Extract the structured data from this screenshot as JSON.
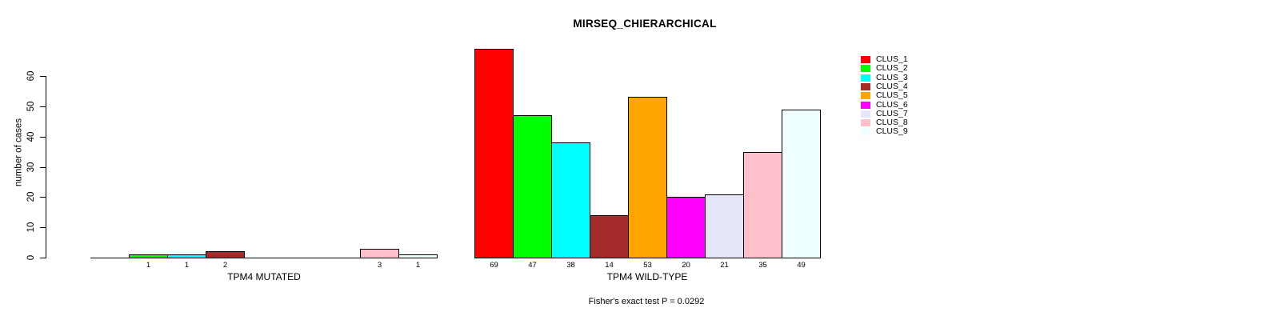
{
  "chart_data": {
    "type": "bar",
    "title": "MIRSEQ_CHIERARCHICAL",
    "ylabel": "number of cases",
    "footer": "Fisher's exact test P = 0.0292",
    "ylim": [
      0,
      69
    ],
    "yticks": [
      0,
      10,
      20,
      30,
      40,
      50,
      60
    ],
    "grid": false,
    "legend_position": "right",
    "legend": [
      {
        "label": "CLUS_1",
        "color": "#FF0000"
      },
      {
        "label": "CLUS_2",
        "color": "#00FF00"
      },
      {
        "label": "CLUS_3",
        "color": "#00FFFF"
      },
      {
        "label": "CLUS_4",
        "color": "#A52A2A"
      },
      {
        "label": "CLUS_5",
        "color": "#FFA500"
      },
      {
        "label": "CLUS_6",
        "color": "#FF00FF"
      },
      {
        "label": "CLUS_7",
        "color": "#E6E6FA"
      },
      {
        "label": "CLUS_8",
        "color": "#FFC0CB"
      },
      {
        "label": "CLUS_9",
        "color": "#F0FFFF"
      }
    ],
    "groups": [
      {
        "xlabel": "TPM4 MUTATED",
        "categories": [
          "CLUS_1",
          "CLUS_2",
          "CLUS_3",
          "CLUS_4",
          "CLUS_5",
          "CLUS_6",
          "CLUS_7",
          "CLUS_8",
          "CLUS_9"
        ],
        "values": [
          0,
          1,
          1,
          2,
          0,
          0,
          0,
          3,
          1
        ],
        "bar_labels": [
          "",
          "1",
          "1",
          "2",
          "",
          "",
          "",
          "3",
          "1"
        ]
      },
      {
        "xlabel": "TPM4 WILD-TYPE",
        "categories": [
          "CLUS_1",
          "CLUS_2",
          "CLUS_3",
          "CLUS_4",
          "CLUS_5",
          "CLUS_6",
          "CLUS_7",
          "CLUS_8",
          "CLUS_9"
        ],
        "values": [
          69,
          47,
          38,
          14,
          53,
          20,
          21,
          35,
          49
        ],
        "bar_labels": [
          "69",
          "47",
          "38",
          "14",
          "53",
          "20",
          "21",
          "35",
          "49"
        ]
      }
    ]
  }
}
